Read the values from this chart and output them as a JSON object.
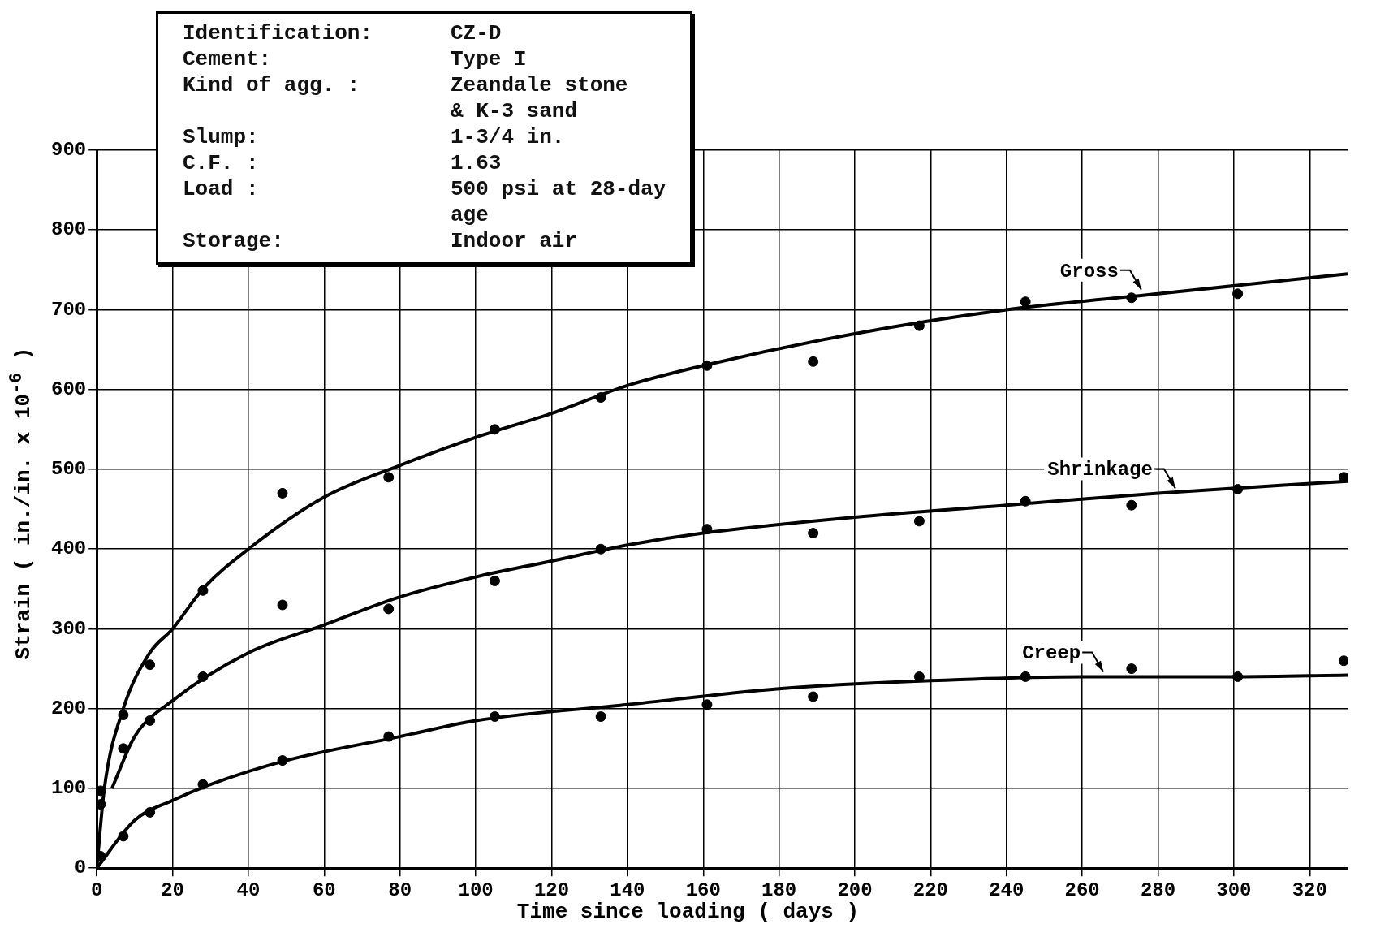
{
  "chart_data": {
    "type": "scatter",
    "xlabel": "Time since loading ( days )",
    "ylabel": "Strain ( in./in. x 10$^{-6}$ )",
    "xlim": [
      0,
      330
    ],
    "xticks": [
      0,
      20,
      40,
      60,
      80,
      100,
      120,
      140,
      160,
      180,
      200,
      220,
      240,
      260,
      280,
      300,
      320
    ],
    "ylim": [
      0,
      900
    ],
    "yticks": [
      0,
      100,
      200,
      300,
      400,
      500,
      600,
      700,
      800,
      900
    ],
    "grid": true,
    "legend": false,
    "series": [
      {
        "type": "scatter",
        "marker": "circle",
        "color": "#000000",
        "x": [
          1,
          7,
          14,
          28,
          49,
          77,
          105,
          133,
          161,
          189,
          217,
          245,
          273,
          301
        ],
        "values": [
          97,
          192,
          255,
          348,
          470,
          490,
          550,
          590,
          630,
          635,
          680,
          710,
          715,
          720
        ]
      },
      {
        "type": "scatter",
        "marker": "circle",
        "color": "#000000",
        "x": [
          1,
          7,
          14,
          28,
          49,
          77,
          105,
          133,
          161,
          189,
          217,
          245,
          273,
          301,
          329
        ],
        "values": [
          80,
          150,
          185,
          240,
          330,
          325,
          360,
          400,
          425,
          420,
          435,
          460,
          455,
          475,
          490
        ]
      },
      {
        "type": "scatter",
        "marker": "circle",
        "color": "#000000",
        "x": [
          1,
          7,
          14,
          28,
          49,
          77,
          105,
          133,
          161,
          189,
          217,
          245,
          273,
          301,
          329
        ],
        "values": [
          15,
          40,
          70,
          105,
          135,
          165,
          190,
          190,
          205,
          215,
          240,
          240,
          250,
          240,
          260
        ]
      },
      {
        "type": "line",
        "marker": "none",
        "line_style": "solid",
        "color": "#000000",
        "x": [
          0,
          2,
          7,
          14,
          20,
          28,
          40,
          60,
          80,
          100,
          120,
          140,
          160,
          200,
          240,
          280,
          330
        ],
        "values": [
          0,
          100,
          200,
          270,
          300,
          350,
          400,
          465,
          505,
          540,
          570,
          605,
          630,
          670,
          700,
          720,
          745
        ]
      },
      {
        "type": "line",
        "marker": "none",
        "line_style": "solid",
        "color": "#000000",
        "x": [
          4,
          10,
          20,
          40,
          60,
          80,
          100,
          120,
          140,
          160,
          200,
          240,
          280,
          330
        ],
        "values": [
          100,
          165,
          210,
          270,
          305,
          340,
          365,
          385,
          405,
          420,
          440,
          455,
          470,
          485
        ]
      },
      {
        "type": "line",
        "marker": "none",
        "line_style": "solid",
        "color": "#000000",
        "x": [
          0,
          10,
          20,
          30,
          50,
          80,
          100,
          140,
          180,
          220,
          260,
          300,
          330
        ],
        "values": [
          0,
          60,
          85,
          105,
          135,
          165,
          185,
          205,
          225,
          235,
          240,
          240,
          242
        ]
      }
    ],
    "annotations": [
      {
        "text": "Gross",
        "x": 276,
        "y": 719
      },
      {
        "text": "Shrinkage",
        "x": 285,
        "y": 470
      },
      {
        "text": "Creep",
        "x": 266,
        "y": 240
      },
      "Identification:",
      "CZ-D",
      "Cement:",
      "Type I",
      "Kind of agg. :",
      "Zeandale stone\n& K-3 sand",
      "Slump:",
      "1-3/4 in.",
      "C.F. :",
      "1.63",
      "Load :",
      "500 psi at 28-day\nage",
      "Storage:",
      "Indoor air"
    ]
  }
}
